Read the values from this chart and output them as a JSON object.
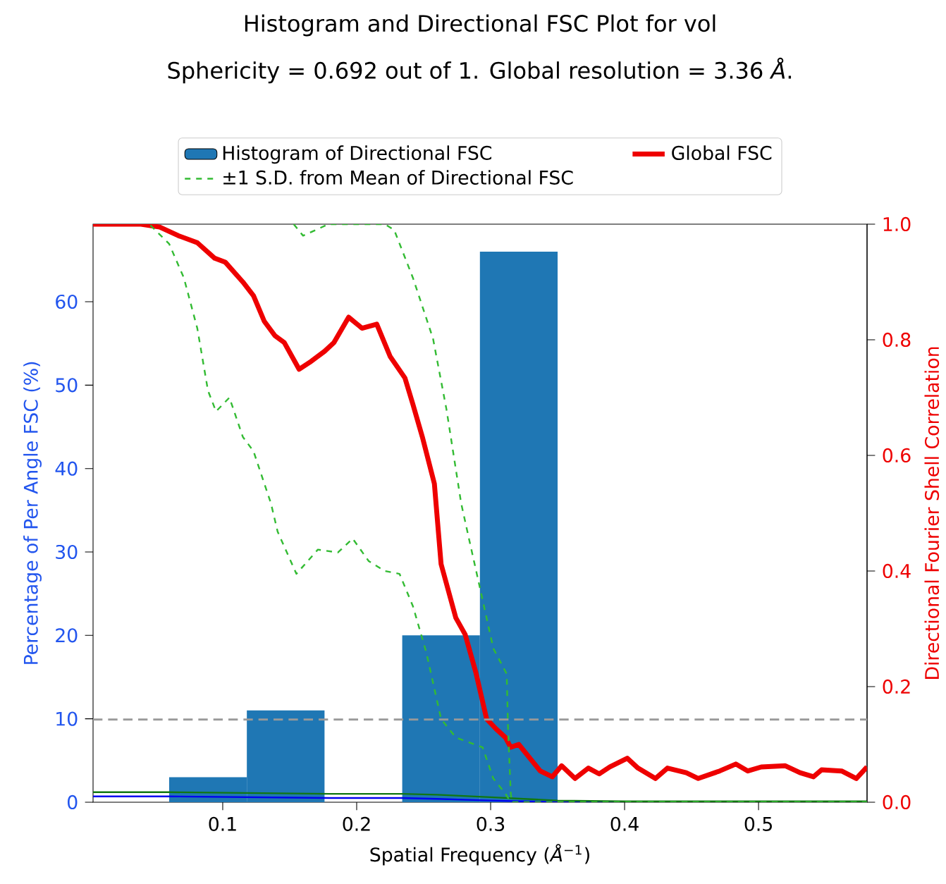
{
  "chart_data": {
    "type": "histogram",
    "title": "Histogram and Directional FSC Plot for vol",
    "subtitle": "Sphericity = 0.692 out of 1. Global resolution = 3.36 *Å*.",
    "xlabel": "Spatial Frequency (*Å*$^{−1}$)",
    "ylabel": "Percentage of Per Angle FSC (%)",
    "y2label": "Directional Fourier Shell Correlation",
    "xlim": [
      0.0032,
      0.581
    ],
    "xticks": [
      0.1,
      0.2,
      0.3,
      0.4,
      0.5
    ],
    "ylim": [
      0,
      69.3
    ],
    "yticks": [
      0,
      10,
      20,
      30,
      40,
      50,
      60
    ],
    "y2lim": [
      0,
      1
    ],
    "y2ticks": [
      {
        "value": 0,
        "label": "0.0"
      },
      {
        "value": 0.2,
        "label": "0.2"
      },
      {
        "value": 0.4,
        "label": "0.4"
      },
      {
        "value": 0.6,
        "label": "0.6"
      },
      {
        "value": 0.8,
        "label": "0.8"
      },
      {
        "value": 1,
        "label": "1.0"
      }
    ],
    "legend": "top",
    "grid": false,
    "ref_lines": [
      {
        "axis": "y2",
        "value": 0.143,
        "color": "#999999",
        "line_style": "dashed"
      }
    ],
    "series": [
      {
        "name": "Histogram of Directional FSC",
        "color": "#1f77b4",
        "bins": [
          0.06,
          0.118,
          0.176,
          0.234,
          0.292,
          0.35
        ],
        "values": [
          3,
          11,
          0,
          20,
          66
        ]
      },
      {
        "type": "line",
        "name": "Global FSC",
        "color": "#ee0000",
        "axis": "y2",
        "line_style": "solid",
        "x": [
          0.0032,
          0.039,
          0.053,
          0.067,
          0.081,
          0.094,
          0.102,
          0.115,
          0.123,
          0.131,
          0.139,
          0.146,
          0.157,
          0.165,
          0.176,
          0.183,
          0.194,
          0.204,
          0.215,
          0.225,
          0.236,
          0.242,
          0.249,
          0.258,
          0.263,
          0.274,
          0.281,
          0.289,
          0.297,
          0.304,
          0.311,
          0.315,
          0.321,
          0.337,
          0.346,
          0.353,
          0.363,
          0.373,
          0.381,
          0.389,
          0.402,
          0.41,
          0.423,
          0.432,
          0.446,
          0.455,
          0.471,
          0.483,
          0.492,
          0.502,
          0.52,
          0.531,
          0.541,
          0.547,
          0.562,
          0.573,
          0.581
        ],
        "values": [
          1.0,
          1.0,
          0.995,
          0.98,
          0.968,
          0.941,
          0.934,
          0.9,
          0.876,
          0.832,
          0.807,
          0.795,
          0.749,
          0.761,
          0.78,
          0.795,
          0.839,
          0.82,
          0.827,
          0.771,
          0.734,
          0.688,
          0.632,
          0.551,
          0.412,
          0.319,
          0.29,
          0.224,
          0.144,
          0.127,
          0.112,
          0.095,
          0.1,
          0.054,
          0.044,
          0.063,
          0.041,
          0.059,
          0.049,
          0.061,
          0.076,
          0.059,
          0.041,
          0.059,
          0.051,
          0.041,
          0.054,
          0.066,
          0.054,
          0.061,
          0.063,
          0.051,
          0.044,
          0.056,
          0.054,
          0.041,
          0.061
        ]
      },
      {
        "type": "line",
        "name": "±1 S.D. from Mean of Directional FSC",
        "color": "#33bb33",
        "axis": "y2",
        "line_style": "dashed",
        "x": [
          0.153,
          0.16,
          0.179,
          0.2,
          0.221,
          0.228,
          0.242,
          0.257,
          0.267,
          0.278,
          0.284,
          0.292,
          0.302,
          0.312,
          0.313,
          0.315,
          0.316,
          0.4,
          0.5,
          0.581
        ],
        "values": [
          1.0,
          0.98,
          1.0,
          null,
          1.0,
          0.99,
          0.907,
          0.802,
          0.68,
          0.517,
          0.454,
          0.371,
          0.266,
          0.222,
          0.127,
          0.015,
          0,
          0,
          0,
          0
        ]
      },
      {
        "type": "line",
        "color": "#33bb33",
        "axis": "y2",
        "line_style": "dashed",
        "x": [
          0.046,
          0.06,
          0.071,
          0.081,
          0.089,
          0.095,
          0.105,
          0.115,
          0.123,
          0.136,
          0.141,
          0.155,
          0.171,
          0.186,
          0.197,
          0.209,
          0.221,
          0.232,
          0.242,
          0.252,
          0.263,
          0.274,
          0.294,
          0.302,
          0.311,
          0.315,
          0.4,
          0.5,
          0.581
        ],
        "values": [
          0.998,
          0.966,
          0.907,
          0.82,
          0.712,
          0.676,
          0.7,
          0.632,
          0.607,
          0.517,
          0.468,
          0.395,
          0.437,
          0.432,
          0.456,
          0.417,
          0.4,
          0.395,
          0.339,
          0.259,
          0.144,
          0.112,
          0.095,
          0.041,
          0.015,
          0,
          0,
          0,
          0
        ]
      },
      {
        "type": "line",
        "color": "#0000ee",
        "line_style": "solid",
        "x": [
          0.0032,
          0.06,
          0.12,
          0.18,
          0.234,
          0.26,
          0.3,
          0.35,
          0.4
        ],
        "values": [
          0.7,
          0.7,
          0.6,
          0.5,
          0.5,
          0.4,
          0.2,
          0,
          0
        ]
      },
      {
        "type": "line",
        "color": "#117711",
        "line_style": "solid",
        "x": [
          0.0032,
          0.06,
          0.12,
          0.18,
          0.234,
          0.26,
          0.3,
          0.35,
          0.4,
          0.5,
          0.581
        ],
        "values": [
          1.2,
          1.2,
          1.1,
          1.0,
          1.0,
          0.9,
          0.6,
          0.2,
          0.1,
          0.1,
          0.1
        ]
      }
    ]
  }
}
